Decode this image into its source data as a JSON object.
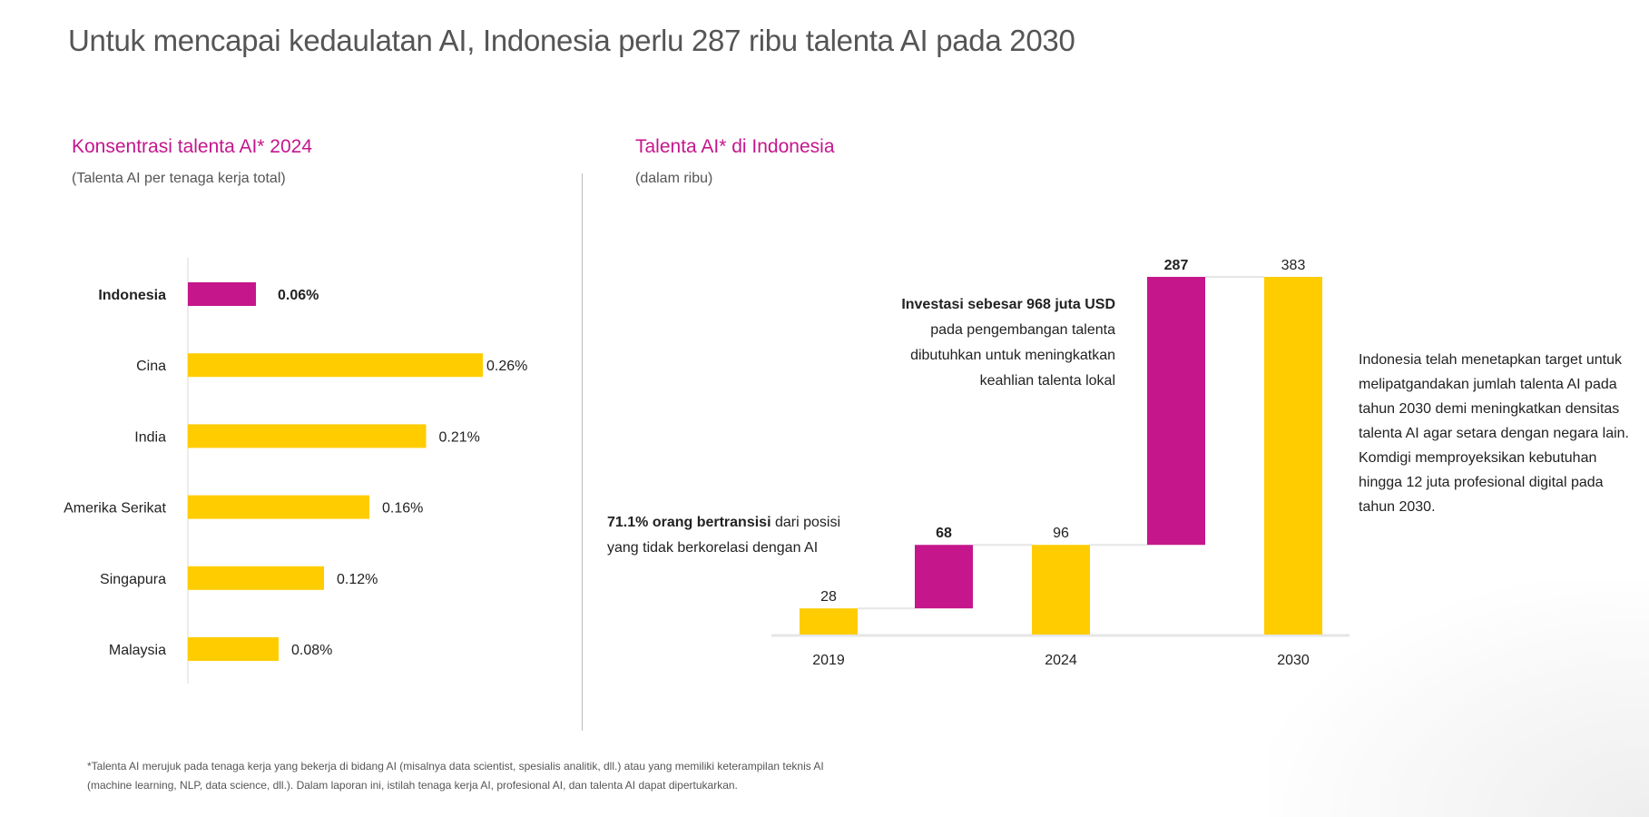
{
  "title": "Untuk mencapai kedaulatan AI, Indonesia perlu 287 ribu talenta AI pada 2030",
  "colors": {
    "magenta": "#c5168c",
    "yellow": "#ffcc00",
    "title_gray": "#555555"
  },
  "chart_data": [
    {
      "type": "bar",
      "orientation": "horizontal",
      "title": "Konsentrasi talenta AI* 2024",
      "subtitle": "(Talenta AI per tenaga kerja total)",
      "categories": [
        "Indonesia",
        "Cina",
        "India",
        "Amerika Serikat",
        "Singapura",
        "Malaysia"
      ],
      "values": [
        0.06,
        0.26,
        0.21,
        0.16,
        0.12,
        0.08
      ],
      "labels": [
        "0.06%",
        "0.26%",
        "0.21%",
        "0.16%",
        "0.12%",
        "0.08%"
      ],
      "highlight": "Indonesia",
      "unit": "%"
    },
    {
      "type": "waterfall",
      "title": "Talenta AI* di Indonesia",
      "subtitle": "(dalam ribu)",
      "bars": [
        {
          "x": "2019",
          "start": 0,
          "end": 28,
          "label": "28",
          "kind": "total"
        },
        {
          "x": "",
          "start": 28,
          "end": 96,
          "label": "68",
          "kind": "increase"
        },
        {
          "x": "2024",
          "start": 0,
          "end": 96,
          "label": "96",
          "kind": "total"
        },
        {
          "x": "",
          "start": 96,
          "end": 383,
          "label": "287",
          "kind": "increase"
        },
        {
          "x": "2030",
          "start": 0,
          "end": 383,
          "label": "383",
          "kind": "total"
        }
      ],
      "ylim": [
        0,
        383
      ]
    }
  ],
  "annotations": {
    "invest_bold": "Investasi sebesar 968 juta USD",
    "invest_lines": [
      "pada pengembangan talenta",
      "dibutuhkan untuk meningkatkan",
      "keahlian talenta lokal"
    ],
    "trans_bold": "71.1% orang bertransisi",
    "trans_rest": " dari posisi",
    "trans_line2": "yang tidak berkorelasi dengan AI"
  },
  "side_text": "Indonesia telah menetapkan target untuk melipatgandakan jumlah talenta AI pada tahun 2030 demi meningkatkan densitas talenta AI agar setara dengan negara lain. Komdigi memproyeksikan kebutuhan hingga 12 juta profesional digital pada tahun 2030.",
  "footnote": [
    "*Talenta AI merujuk pada tenaga kerja yang bekerja di bidang AI (misalnya data scientist, spesialis analitik, dll.) atau yang memiliki keterampilan teknis AI",
    "(machine learning, NLP, data science, dll.). Dalam laporan ini, istilah tenaga kerja AI, profesional AI, dan talenta AI dapat dipertukarkan."
  ]
}
